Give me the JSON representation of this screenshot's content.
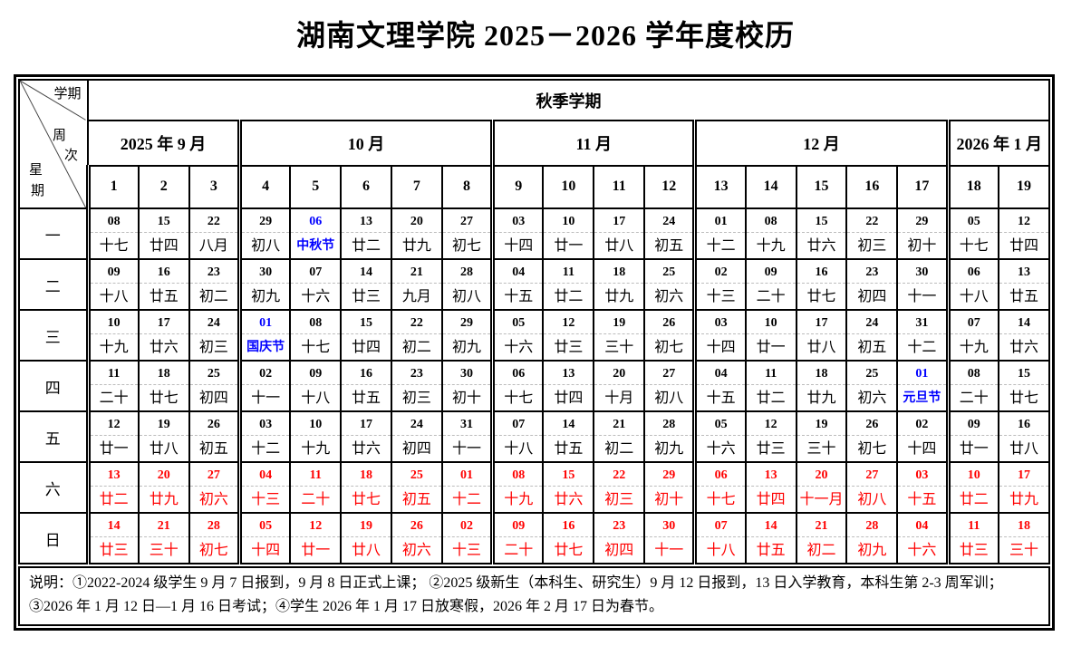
{
  "title": "湖南文理学院 2025－2026 学年度校历",
  "colors": {
    "festival_blue": "#0000ff",
    "weekend_red": "#ff0000",
    "grid": "#000000"
  },
  "corner": {
    "top": "学期",
    "middle": "周次",
    "bottom": "星期"
  },
  "semester": "秋季学期",
  "months": [
    {
      "label": "2025 年 9 月",
      "span": 3
    },
    {
      "label": "10 月",
      "span": 5
    },
    {
      "label": "11 月",
      "span": 4
    },
    {
      "label": "12 月",
      "span": 5
    },
    {
      "label": "2026 年 1 月",
      "span": 2
    }
  ],
  "weeks": [
    "1",
    "2",
    "3",
    "4",
    "5",
    "6",
    "7",
    "8",
    "9",
    "10",
    "11",
    "12",
    "13",
    "14",
    "15",
    "16",
    "17",
    "18",
    "19"
  ],
  "rows": [
    {
      "day": "一",
      "weekend": false,
      "cells": [
        [
          "08",
          "十七"
        ],
        [
          "15",
          "廿四"
        ],
        [
          "22",
          "八月"
        ],
        [
          "29",
          "初八"
        ],
        [
          "06",
          "中秋节",
          "f"
        ],
        [
          "13",
          "廿二"
        ],
        [
          "20",
          "廿九"
        ],
        [
          "27",
          "初七"
        ],
        [
          "03",
          "十四"
        ],
        [
          "10",
          "廿一"
        ],
        [
          "17",
          "廿八"
        ],
        [
          "24",
          "初五"
        ],
        [
          "01",
          "十二"
        ],
        [
          "08",
          "十九"
        ],
        [
          "15",
          "廿六"
        ],
        [
          "22",
          "初三"
        ],
        [
          "29",
          "初十"
        ],
        [
          "05",
          "十七"
        ],
        [
          "12",
          "廿四"
        ]
      ]
    },
    {
      "day": "二",
      "weekend": false,
      "cells": [
        [
          "09",
          "十八"
        ],
        [
          "16",
          "廿五"
        ],
        [
          "23",
          "初二"
        ],
        [
          "30",
          "初九"
        ],
        [
          "07",
          "十六"
        ],
        [
          "14",
          "廿三"
        ],
        [
          "21",
          "九月"
        ],
        [
          "28",
          "初八"
        ],
        [
          "04",
          "十五"
        ],
        [
          "11",
          "廿二"
        ],
        [
          "18",
          "廿九"
        ],
        [
          "25",
          "初六"
        ],
        [
          "02",
          "十三"
        ],
        [
          "09",
          "二十"
        ],
        [
          "16",
          "廿七"
        ],
        [
          "23",
          "初四"
        ],
        [
          "30",
          "十一"
        ],
        [
          "06",
          "十八"
        ],
        [
          "13",
          "廿五"
        ]
      ]
    },
    {
      "day": "三",
      "weekend": false,
      "cells": [
        [
          "10",
          "十九"
        ],
        [
          "17",
          "廿六"
        ],
        [
          "24",
          "初三"
        ],
        [
          "01",
          "国庆节",
          "f"
        ],
        [
          "08",
          "十七"
        ],
        [
          "15",
          "廿四"
        ],
        [
          "22",
          "初二"
        ],
        [
          "29",
          "初九"
        ],
        [
          "05",
          "十六"
        ],
        [
          "12",
          "廿三"
        ],
        [
          "19",
          "三十"
        ],
        [
          "26",
          "初七"
        ],
        [
          "03",
          "十四"
        ],
        [
          "10",
          "廿一"
        ],
        [
          "17",
          "廿八"
        ],
        [
          "24",
          "初五"
        ],
        [
          "31",
          "十二"
        ],
        [
          "07",
          "十九"
        ],
        [
          "14",
          "廿六"
        ]
      ]
    },
    {
      "day": "四",
      "weekend": false,
      "cells": [
        [
          "11",
          "二十"
        ],
        [
          "18",
          "廿七"
        ],
        [
          "25",
          "初四"
        ],
        [
          "02",
          "十一"
        ],
        [
          "09",
          "十八"
        ],
        [
          "16",
          "廿五"
        ],
        [
          "23",
          "初三"
        ],
        [
          "30",
          "初十"
        ],
        [
          "06",
          "十七"
        ],
        [
          "13",
          "廿四"
        ],
        [
          "20",
          "十月"
        ],
        [
          "27",
          "初八"
        ],
        [
          "04",
          "十五"
        ],
        [
          "11",
          "廿二"
        ],
        [
          "18",
          "廿九"
        ],
        [
          "25",
          "初六"
        ],
        [
          "01",
          "元旦节",
          "f"
        ],
        [
          "08",
          "二十"
        ],
        [
          "15",
          "廿七"
        ]
      ]
    },
    {
      "day": "五",
      "weekend": false,
      "cells": [
        [
          "12",
          "廿一"
        ],
        [
          "19",
          "廿八"
        ],
        [
          "26",
          "初五"
        ],
        [
          "03",
          "十二"
        ],
        [
          "10",
          "十九"
        ],
        [
          "17",
          "廿六"
        ],
        [
          "24",
          "初四"
        ],
        [
          "31",
          "十一"
        ],
        [
          "07",
          "十八"
        ],
        [
          "14",
          "廿五"
        ],
        [
          "21",
          "初二"
        ],
        [
          "28",
          "初九"
        ],
        [
          "05",
          "十六"
        ],
        [
          "12",
          "廿三"
        ],
        [
          "19",
          "三十"
        ],
        [
          "26",
          "初七"
        ],
        [
          "02",
          "十四"
        ],
        [
          "09",
          "廿一"
        ],
        [
          "16",
          "廿八"
        ]
      ]
    },
    {
      "day": "六",
      "weekend": true,
      "cells": [
        [
          "13",
          "廿二"
        ],
        [
          "20",
          "廿九"
        ],
        [
          "27",
          "初六"
        ],
        [
          "04",
          "十三"
        ],
        [
          "11",
          "二十"
        ],
        [
          "18",
          "廿七"
        ],
        [
          "25",
          "初五"
        ],
        [
          "01",
          "十二"
        ],
        [
          "08",
          "十九"
        ],
        [
          "15",
          "廿六"
        ],
        [
          "22",
          "初三"
        ],
        [
          "29",
          "初十"
        ],
        [
          "06",
          "十七"
        ],
        [
          "13",
          "廿四"
        ],
        [
          "20",
          "十一月"
        ],
        [
          "27",
          "初八"
        ],
        [
          "03",
          "十五"
        ],
        [
          "10",
          "廿二"
        ],
        [
          "17",
          "廿九"
        ]
      ]
    },
    {
      "day": "日",
      "weekend": true,
      "cells": [
        [
          "14",
          "廿三"
        ],
        [
          "21",
          "三十"
        ],
        [
          "28",
          "初七"
        ],
        [
          "05",
          "十四"
        ],
        [
          "12",
          "廿一"
        ],
        [
          "19",
          "廿八"
        ],
        [
          "26",
          "初六"
        ],
        [
          "02",
          "十三"
        ],
        [
          "09",
          "二十"
        ],
        [
          "16",
          "廿七"
        ],
        [
          "23",
          "初四"
        ],
        [
          "30",
          "十一"
        ],
        [
          "07",
          "十八"
        ],
        [
          "14",
          "廿五"
        ],
        [
          "21",
          "初二"
        ],
        [
          "28",
          "初九"
        ],
        [
          "04",
          "十六"
        ],
        [
          "11",
          "廿三"
        ],
        [
          "18",
          "三十"
        ]
      ]
    }
  ],
  "notes": [
    "说明：①2022-2024 级学生 9 月 7 日报到，9 月 8 日正式上课； ②2025 级新生（本科生、研究生）9 月 12 日报到，13 日入学教育，本科生第 2-3 周军训；",
    "③2026 年 1 月 12 日—1 月 16 日考试；④学生 2026 年 1 月 17 日放寒假，2026 年 2 月 17 日为春节。"
  ]
}
